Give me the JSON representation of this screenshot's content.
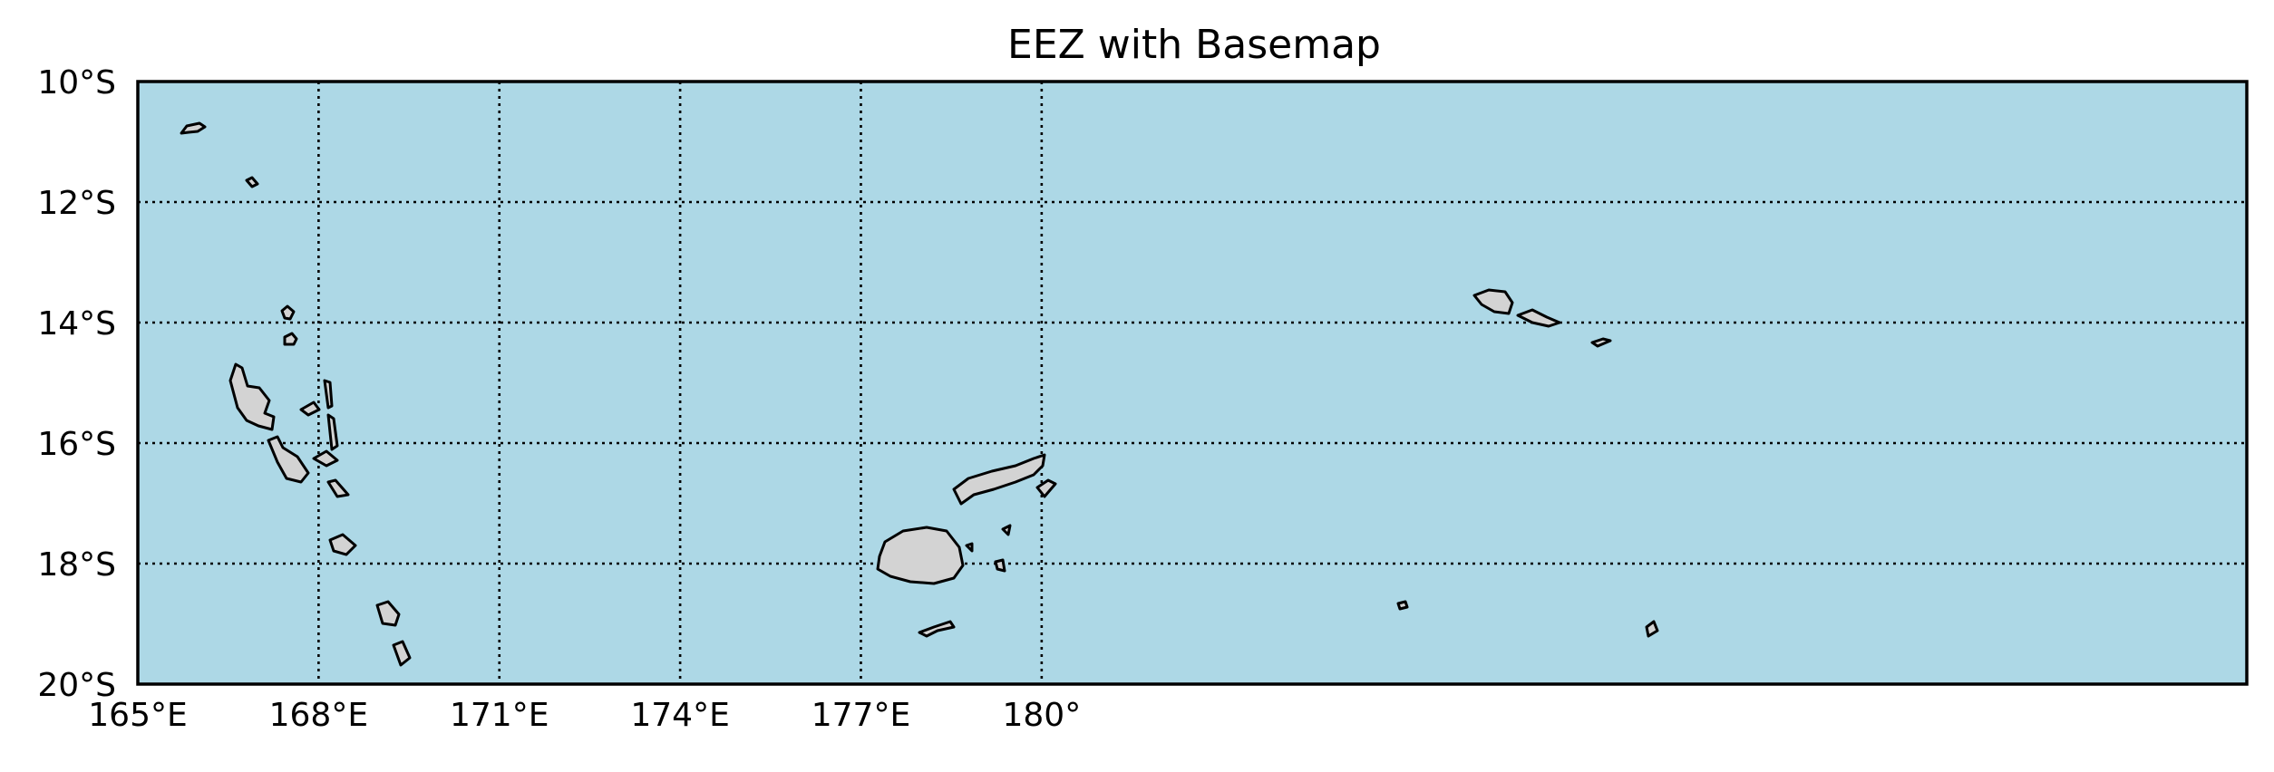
{
  "map": {
    "title": "EEZ with Basemap",
    "extent": {
      "lon_min": 165,
      "lon_max": 200,
      "lat_min": -20,
      "lat_max": -10
    },
    "ocean_color": "#add8e6",
    "land_color": "#d3d3d3",
    "grid": {
      "style": "dotted",
      "color": "#000000"
    },
    "meridians": [
      {
        "lon": 165,
        "label": "165°E"
      },
      {
        "lon": 168,
        "label": "168°E"
      },
      {
        "lon": 171,
        "label": "171°E"
      },
      {
        "lon": 174,
        "label": "174°E"
      },
      {
        "lon": 177,
        "label": "177°E"
      },
      {
        "lon": 180,
        "label": "180°"
      }
    ],
    "parallels": [
      {
        "lat": -10,
        "label": "10°S"
      },
      {
        "lat": -12,
        "label": "12°S"
      },
      {
        "lat": -14,
        "label": "14°S"
      },
      {
        "lat": -16,
        "label": "16°S"
      },
      {
        "lat": -18,
        "label": "18°S"
      },
      {
        "lat": -20,
        "label": "20°S"
      }
    ]
  }
}
